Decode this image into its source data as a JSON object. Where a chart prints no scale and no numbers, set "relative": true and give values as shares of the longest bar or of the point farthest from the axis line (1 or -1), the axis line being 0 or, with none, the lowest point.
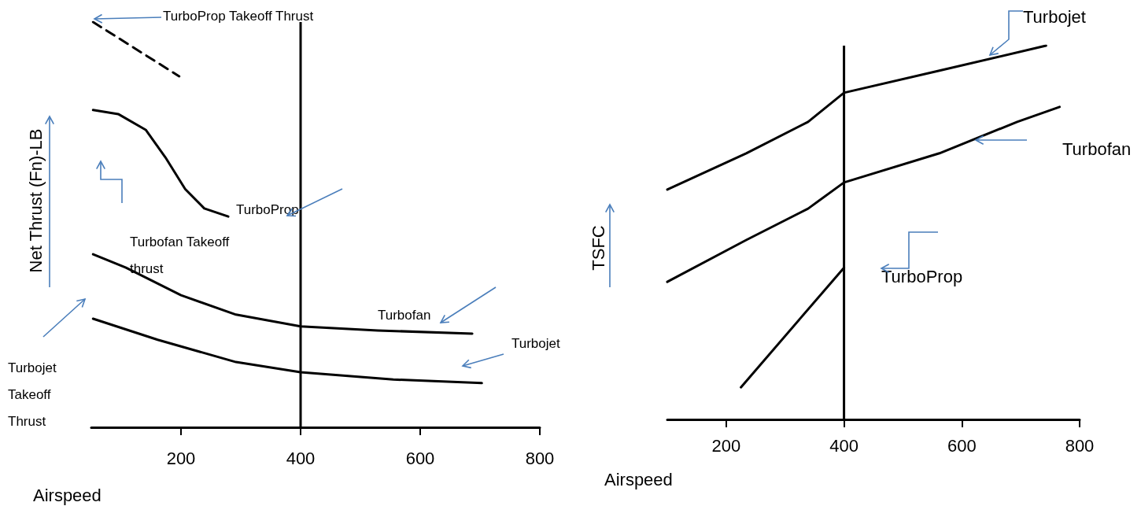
{
  "chart_data": [
    {
      "type": "line",
      "relative": true,
      "xlabel": "Airspeed",
      "ylabel": "Net Thrust (Fn)-LB",
      "xlim": [
        50,
        800
      ],
      "xticks": [
        200,
        400,
        600,
        800
      ],
      "grid": false,
      "legend": false,
      "marker": "none",
      "line_style": "solid",
      "annotations": [
        "TurboProp Takeoff Thrust",
        "Turbofan Takeoff thrust",
        "Turbojet Takeoff Thrust"
      ],
      "ref_lines": [
        {
          "axis": "x",
          "value": 400,
          "color": "#000000"
        }
      ],
      "series": [
        {
          "color": "#000000",
          "line_style": "dashed",
          "x": [
            53,
            197
          ],
          "values": [
            1.0,
            0.866
          ]
        },
        {
          "name": "TurboProp",
          "color": "#000000",
          "x": [
            53,
            95,
            141,
            174,
            207,
            239,
            279
          ],
          "values": [
            0.783,
            0.773,
            0.734,
            0.666,
            0.588,
            0.54,
            0.52
          ]
        },
        {
          "name": "Turbofan",
          "color": "#000000",
          "x": [
            53,
            108,
            200,
            292,
            400,
            529,
            687
          ],
          "values": [
            0.427,
            0.394,
            0.326,
            0.278,
            0.249,
            0.239,
            0.231
          ]
        },
        {
          "name": "Turbojet",
          "color": "#000000",
          "x": [
            53,
            161,
            292,
            400,
            555,
            703
          ],
          "values": [
            0.268,
            0.216,
            0.161,
            0.136,
            0.118,
            0.109
          ]
        }
      ]
    },
    {
      "type": "line",
      "relative": true,
      "xlabel": "Airspeed",
      "ylabel": "TSFC",
      "xlim": [
        100,
        800
      ],
      "xticks": [
        200,
        400,
        600,
        800
      ],
      "grid": false,
      "legend": false,
      "marker": "none",
      "line_style": "solid",
      "ref_lines": [
        {
          "axis": "x",
          "value": 400,
          "color": "#000000"
        }
      ],
      "series": [
        {
          "name": "Turbojet",
          "color": "#000000",
          "x": [
            100,
            234,
            339,
            400,
            562,
            743
          ],
          "values": [
            0.615,
            0.712,
            0.796,
            0.874,
            0.933,
            1.0
          ]
        },
        {
          "name": "Turbofan",
          "color": "#000000",
          "x": [
            100,
            234,
            339,
            400,
            562,
            694,
            766
          ],
          "values": [
            0.368,
            0.48,
            0.564,
            0.634,
            0.712,
            0.796,
            0.836
          ]
        },
        {
          "name": "TurboProp",
          "color": "#000000",
          "x": [
            225,
            400
          ],
          "values": [
            0.086,
            0.406
          ]
        }
      ]
    }
  ]
}
